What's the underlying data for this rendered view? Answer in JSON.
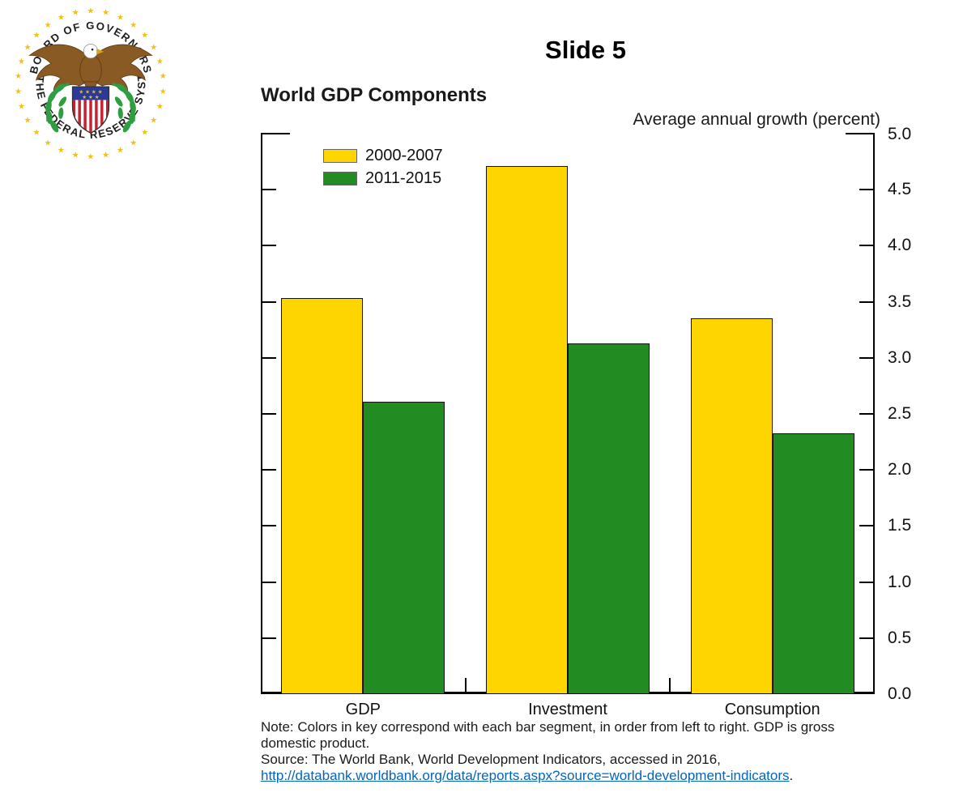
{
  "slide": {
    "title": "Slide 5"
  },
  "seal": {
    "top_text": "• BOARD OF GOVERNORS •",
    "bottom_text": "OF THE FEDERAL RESERVE SYSTEM",
    "colors": {
      "star_gold": "#F0C11D",
      "eagle_brown": "#8A5A24",
      "branch_green": "#2F9E41",
      "shield_blue": "#2B3A94",
      "stripe_red": "#C8202F"
    }
  },
  "chart_data": {
    "type": "bar",
    "title": "World GDP Components",
    "axis_label": "Average annual growth (percent)",
    "categories": [
      "GDP",
      "Investment",
      "Consumption"
    ],
    "series": [
      {
        "name": "2000-2007",
        "color": "#FFD500",
        "values": [
          3.53,
          4.71,
          3.35
        ]
      },
      {
        "name": "2011-2015",
        "color": "#228B22",
        "values": [
          2.61,
          3.13,
          2.33
        ]
      }
    ],
    "ylim": [
      0.0,
      5.0
    ],
    "ytick_step": 0.5,
    "ytick_labels": [
      "0.0",
      "0.5",
      "1.0",
      "1.5",
      "2.0",
      "2.5",
      "3.0",
      "3.5",
      "4.0",
      "4.5",
      "5.0"
    ],
    "legend_position": "top-left",
    "grid": false
  },
  "notes": {
    "note_lines": [
      "Note: Colors in key correspond with each bar segment, in order from left to right. GDP is gross",
      "domestic product."
    ],
    "source_line": "Source: The World Bank, World Development Indicators, accessed in 2016,",
    "link_text": "http://databank.worldbank.org/data/reports.aspx?source=world-development-indicators",
    "link_suffix": ".",
    "link_color": "#0563C1"
  }
}
